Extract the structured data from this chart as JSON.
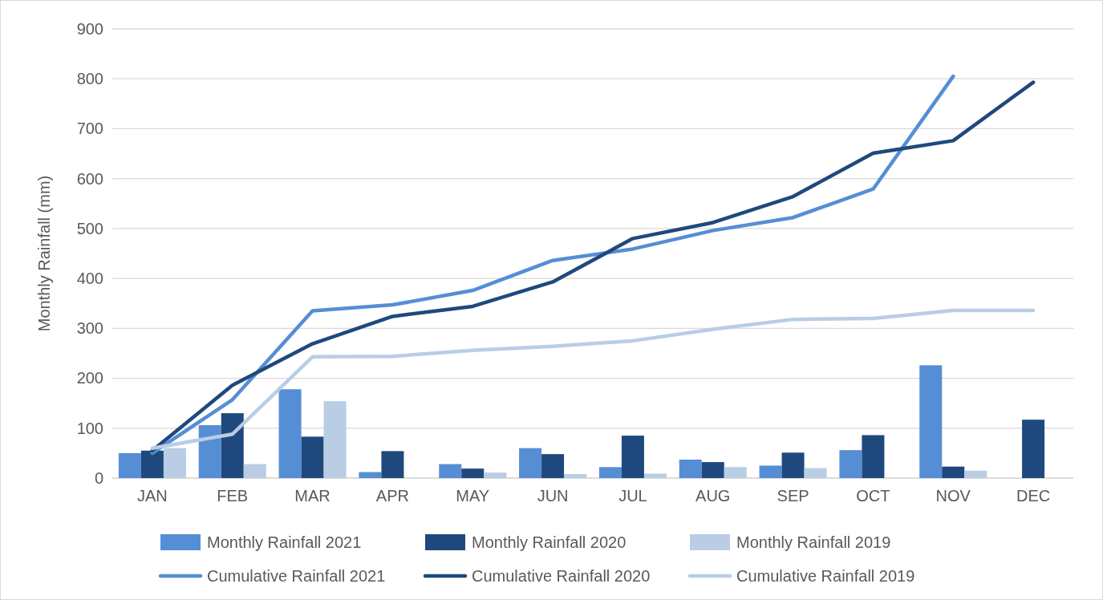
{
  "chart_data": {
    "type": "bar",
    "ylabel": "Monthly Rainfall (mm)",
    "categories": [
      "JAN",
      "FEB",
      "MAR",
      "APR",
      "MAY",
      "JUN",
      "JUL",
      "AUG",
      "SEP",
      "OCT",
      "NOV",
      "DEC"
    ],
    "series": [
      {
        "name": "Monthly Rainfall 2021",
        "color": "#558ed5",
        "values": [
          50,
          106,
          178,
          12,
          28,
          60,
          22,
          37,
          25,
          56,
          226,
          null
        ]
      },
      {
        "name": "Monthly Rainfall 2020",
        "color": "#1f497d",
        "values": [
          55,
          130,
          83,
          54,
          19,
          48,
          85,
          32,
          51,
          86,
          23,
          117
        ]
      },
      {
        "name": "Monthly Rainfall 2019",
        "color": "#b9cde5",
        "values": [
          60,
          28,
          154,
          null,
          11,
          8,
          9,
          22,
          20,
          null,
          15,
          null
        ]
      },
      {
        "name": "Cumulative Rainfall 2021",
        "type": "line",
        "color": "#558ed5",
        "values": [
          50,
          157,
          335,
          347,
          376,
          436,
          459,
          496,
          522,
          579,
          805,
          null
        ]
      },
      {
        "name": "Cumulative Rainfall 2020",
        "type": "line",
        "color": "#1f497d",
        "values": [
          55,
          186,
          269,
          324,
          344,
          393,
          480,
          512,
          564,
          651,
          676,
          793
        ]
      },
      {
        "name": "Cumulative Rainfall 2019",
        "type": "line",
        "color": "#b9cde5",
        "values": [
          60,
          88,
          243,
          244,
          256,
          264,
          275,
          298,
          318,
          320,
          336,
          336
        ]
      }
    ],
    "ylim": [
      0,
      900
    ],
    "yticks": [
      0,
      100,
      200,
      300,
      400,
      500,
      600,
      700,
      800,
      900
    ],
    "grid": "y",
    "legend": "bottom"
  }
}
